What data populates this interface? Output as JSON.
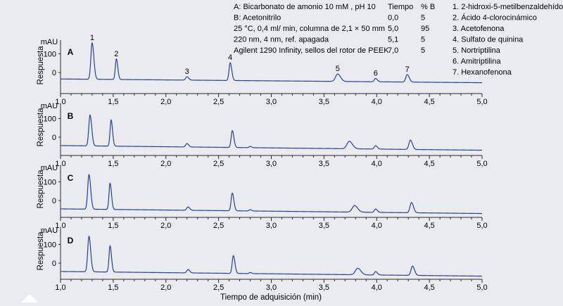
{
  "conditions": [
    "A: Bicarbonato de amonio 10 mM , pH 10",
    "B: Acetonitrilo",
    "25 °C, 0,4 ml/ min, columna de 2,1 × 50 mm",
    "220 nm, 4 nm, ref. apagada",
    "Agilent 1290 Infinity, sellos del rotor de PEEK"
  ],
  "gradient": {
    "headers": [
      "Tiempo",
      "% B"
    ],
    "rows": [
      [
        "0,0",
        "5"
      ],
      [
        "5,0",
        "95"
      ],
      [
        "5,1",
        "5"
      ],
      [
        "7,0",
        "5"
      ]
    ]
  },
  "compounds": [
    "1. 2-hidroxi-5-metilbenzaldehído",
    "2. Ácido 4-clorocinámico",
    "3. Acetofenona",
    "4. Sulfato de quinina",
    "5. Nortriptilina",
    "6. Amitriptilina",
    "7. Hexanofenona"
  ],
  "colors": {
    "trace": "#2b3f9a",
    "axis": "#2a2a2a",
    "background": "#e9ebee"
  },
  "chart_data": {
    "type": "line",
    "xlabel": "Tiempo de adquisición (min)",
    "ylabel": "Respuesta",
    "yunit": "mAU",
    "xlim": [
      1.0,
      5.0
    ],
    "x_ticks": [
      "1,0",
      "1,5",
      "2,0",
      "2,5",
      "3,0",
      "3,5",
      "4,0",
      "4,5",
      "5,0"
    ],
    "panels": [
      {
        "name": "A",
        "y_ticks": [
          "100",
          "0"
        ],
        "baseline": {
          "start": -35,
          "end": -55
        },
        "peak_labels": [
          "1",
          "2",
          "3",
          "4",
          "5",
          "6",
          "7"
        ],
        "peaks": [
          {
            "rt": 1.3,
            "height": 195,
            "width": 0.012
          },
          {
            "rt": 1.53,
            "height": 110,
            "width": 0.01
          },
          {
            "rt": 2.2,
            "height": 18,
            "width": 0.012
          },
          {
            "rt": 2.61,
            "height": 95,
            "width": 0.011
          },
          {
            "rt": 3.63,
            "height": 40,
            "width": 0.02
          },
          {
            "rt": 3.99,
            "height": 18,
            "width": 0.012
          },
          {
            "rt": 4.29,
            "height": 40,
            "width": 0.014
          }
        ]
      },
      {
        "name": "B",
        "y_ticks": [
          "100",
          "0"
        ],
        "baseline": {
          "start": -45,
          "end": -70
        },
        "peaks": [
          {
            "rt": 1.28,
            "height": 165,
            "width": 0.012
          },
          {
            "rt": 1.48,
            "height": 140,
            "width": 0.01
          },
          {
            "rt": 2.2,
            "height": 18,
            "width": 0.012
          },
          {
            "rt": 2.63,
            "height": 90,
            "width": 0.011
          },
          {
            "rt": 2.8,
            "height": 7,
            "width": 0.01
          },
          {
            "rt": 3.74,
            "height": 40,
            "width": 0.022
          },
          {
            "rt": 3.99,
            "height": 18,
            "width": 0.012
          },
          {
            "rt": 4.32,
            "height": 50,
            "width": 0.014
          }
        ]
      },
      {
        "name": "C",
        "y_ticks": [
          "100",
          "0"
        ],
        "baseline": {
          "start": -45,
          "end": -70
        },
        "peaks": [
          {
            "rt": 1.27,
            "height": 185,
            "width": 0.012
          },
          {
            "rt": 1.47,
            "height": 140,
            "width": 0.01
          },
          {
            "rt": 2.21,
            "height": 18,
            "width": 0.012
          },
          {
            "rt": 2.63,
            "height": 95,
            "width": 0.011
          },
          {
            "rt": 2.8,
            "height": 7,
            "width": 0.01
          },
          {
            "rt": 3.79,
            "height": 35,
            "width": 0.022
          },
          {
            "rt": 3.99,
            "height": 18,
            "width": 0.012
          },
          {
            "rt": 4.33,
            "height": 55,
            "width": 0.014
          }
        ]
      },
      {
        "name": "D",
        "y_ticks": [
          "100",
          "0"
        ],
        "baseline": {
          "start": -45,
          "end": -70
        },
        "peaks": [
          {
            "rt": 1.27,
            "height": 190,
            "width": 0.012
          },
          {
            "rt": 1.47,
            "height": 140,
            "width": 0.01
          },
          {
            "rt": 2.21,
            "height": 18,
            "width": 0.012
          },
          {
            "rt": 2.64,
            "height": 95,
            "width": 0.011
          },
          {
            "rt": 2.8,
            "height": 6,
            "width": 0.01
          },
          {
            "rt": 3.82,
            "height": 35,
            "width": 0.022
          },
          {
            "rt": 3.99,
            "height": 18,
            "width": 0.012
          },
          {
            "rt": 4.34,
            "height": 50,
            "width": 0.014
          }
        ]
      }
    ]
  }
}
